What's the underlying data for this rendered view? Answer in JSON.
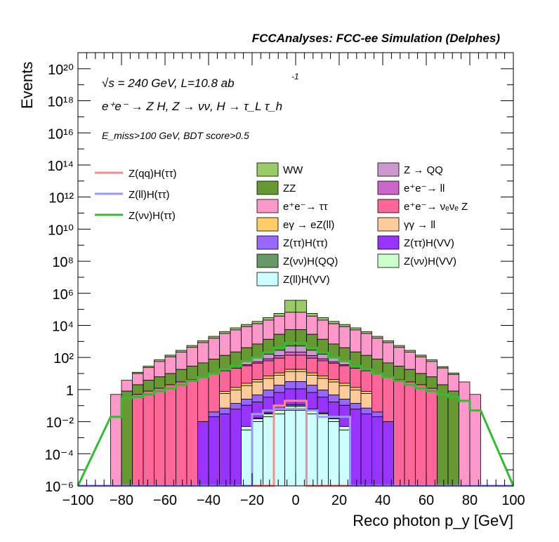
{
  "header": {
    "title": "FCCAnalyses: FCC-ee Simulation (Delphes)"
  },
  "annotations": {
    "energy_lumi": "√s = 240 GeV, L=10.8 ab",
    "energy_lumi_exp": "-1",
    "process": "e⁺e⁻ → Z H, Z → νν, H → τ_L τ_h",
    "selection": "E_miss>100 GeV, BDT score>0.5"
  },
  "chart_data": {
    "type": "area",
    "title": "FCCAnalyses: FCC-ee Simulation (Delphes)",
    "xlabel": "Reco photon p_y [GeV]",
    "ylabel": "Events",
    "xlim": [
      -100,
      100
    ],
    "ylim": [
      1e-06,
      1e+21
    ],
    "yscale": "log",
    "grid": false,
    "x_ticks": [
      "−100",
      "−80",
      "−60",
      "−40",
      "−20",
      "0",
      "20",
      "40",
      "60",
      "80",
      "100"
    ],
    "y_ticks": [
      "10⁻⁶",
      "10⁻⁴",
      "10⁻²",
      "1",
      "10²",
      "10⁴",
      "10⁶",
      "10⁸",
      "10¹⁰",
      "10¹²",
      "10¹⁴",
      "10¹⁶",
      "10¹⁸",
      "10²⁰"
    ],
    "bin_width": 5,
    "bin_centers": [
      -82.5,
      -77.5,
      -72.5,
      -67.5,
      -62.5,
      -57.5,
      -52.5,
      -47.5,
      -42.5,
      -37.5,
      -32.5,
      -27.5,
      -22.5,
      -17.5,
      -12.5,
      -7.5,
      -2.5,
      2.5,
      7.5,
      12.5,
      17.5,
      22.5,
      27.5,
      32.5,
      37.5,
      42.5,
      47.5,
      52.5,
      57.5,
      62.5,
      67.5,
      72.5,
      77.5,
      82.5
    ],
    "stacked_series": [
      {
        "name": "Z(ll)H(VV)",
        "color": "#ccffff",
        "values": [
          0,
          0,
          0,
          0,
          0,
          0,
          0,
          0,
          0,
          0,
          0,
          0,
          0.003,
          0.01,
          0.02,
          0.03,
          0.05,
          0.05,
          0.03,
          0.02,
          0.01,
          0.003,
          0,
          0,
          0,
          0,
          0,
          0,
          0,
          0,
          0,
          0,
          0,
          0
        ]
      },
      {
        "name": "Z(νν)H(VV)",
        "color": "#ccffcc",
        "values": [
          0,
          0,
          0,
          0,
          0,
          0,
          0,
          0,
          0,
          0,
          0,
          0,
          0.002,
          0.005,
          0.01,
          0.02,
          0.04,
          0.04,
          0.02,
          0.01,
          0.005,
          0.002,
          0,
          0,
          0,
          0,
          0,
          0,
          0,
          0,
          0,
          0,
          0,
          0
        ]
      },
      {
        "name": "Z(νν)H(QQ)",
        "color": "#669966",
        "values": [
          0,
          0,
          0,
          0,
          0,
          0,
          0,
          0,
          0,
          0,
          0,
          0,
          0,
          0.002,
          0.005,
          0.01,
          0.02,
          0.02,
          0.01,
          0.005,
          0.002,
          0,
          0,
          0,
          0,
          0,
          0,
          0,
          0,
          0,
          0,
          0,
          0,
          0
        ]
      },
      {
        "name": "Z(ττ)H(VV)",
        "color": "#9933ff",
        "values": [
          0,
          0,
          0,
          0,
          0,
          0,
          0,
          0,
          0.01,
          0.02,
          0.03,
          0.06,
          0.1,
          0.15,
          0.3,
          0.6,
          1.0,
          1.0,
          0.6,
          0.3,
          0.15,
          0.1,
          0.06,
          0.03,
          0.02,
          0.01,
          0,
          0,
          0,
          0,
          0,
          0,
          0,
          0
        ]
      },
      {
        "name": "Z(ττ)H(ττ)",
        "color": "#9966ff",
        "values": [
          0,
          0,
          0,
          0,
          0,
          0,
          0,
          0,
          0,
          0.02,
          0.04,
          0.08,
          0.15,
          0.3,
          0.6,
          1.2,
          2.0,
          2.0,
          1.2,
          0.6,
          0.3,
          0.15,
          0.08,
          0.04,
          0.02,
          0,
          0,
          0,
          0,
          0,
          0,
          0,
          0,
          0
        ]
      },
      {
        "name": "γγ → ll",
        "color": "#ffcc99",
        "values": [
          0,
          0,
          0,
          0,
          0,
          0,
          0,
          0,
          0,
          0,
          0.5,
          0.8,
          1.5,
          2.5,
          4,
          6,
          10,
          10,
          6,
          4,
          2.5,
          1.5,
          0.8,
          0.5,
          0,
          0,
          0,
          0,
          0,
          0,
          0,
          0,
          0,
          0
        ]
      },
      {
        "name": "eγ → eZ(ll)",
        "color": "#ffcc66",
        "values": [
          0,
          0,
          0,
          0,
          0,
          0,
          0,
          0,
          0,
          0,
          0.2,
          0.4,
          0.7,
          1.2,
          2,
          3,
          5,
          5,
          3,
          2,
          1.2,
          0.7,
          0.4,
          0.2,
          0,
          0,
          0,
          0,
          0,
          0,
          0,
          0,
          0,
          0
        ]
      },
      {
        "name": "e⁺e⁻→ νₑνₑ Z",
        "color": "#ff6699",
        "values": [
          0,
          0,
          0.5,
          0.8,
          1.2,
          2,
          3,
          4,
          6,
          10,
          14,
          20,
          28,
          40,
          55,
          80,
          120,
          120,
          80,
          55,
          40,
          28,
          20,
          14,
          10,
          6,
          4,
          3,
          2,
          1.2,
          0,
          0,
          0,
          0
        ]
      },
      {
        "name": "e⁺e⁻→ ll",
        "color": "#cc66cc",
        "values": [
          0,
          0,
          0,
          0,
          0,
          0,
          0,
          0,
          0,
          0,
          0,
          0,
          5,
          10,
          20,
          40,
          80,
          80,
          40,
          20,
          10,
          5,
          0,
          0,
          0,
          0,
          0,
          0,
          0,
          0,
          0,
          0,
          0,
          0
        ]
      },
      {
        "name": "Z → QQ",
        "color": "#cc99cc",
        "values": [
          0,
          0,
          0,
          0,
          0,
          0,
          0,
          0,
          0,
          0,
          0,
          0,
          20,
          40,
          80,
          150,
          300,
          300,
          150,
          80,
          40,
          20,
          0,
          0,
          0,
          0,
          0,
          0,
          0,
          0,
          0,
          0,
          0,
          0
        ]
      },
      {
        "name": "ZZ",
        "color": "#669933",
        "values": [
          0,
          0.8,
          1.5,
          3,
          5,
          8,
          15,
          25,
          40,
          70,
          120,
          200,
          350,
          600,
          1200,
          2500,
          5000,
          5000,
          2500,
          1200,
          600,
          350,
          200,
          120,
          70,
          40,
          25,
          15,
          8,
          5,
          2,
          0.8,
          0,
          0
        ]
      },
      {
        "name": "e⁺e⁻→ ττ",
        "color": "#ff99cc",
        "values": [
          0.5,
          3,
          8,
          20,
          50,
          100,
          200,
          400,
          800,
          1500,
          3000,
          5000,
          8000,
          12000,
          20000,
          35000,
          60000,
          60000,
          35000,
          20000,
          12000,
          8000,
          5000,
          3000,
          1500,
          800,
          400,
          200,
          100,
          50,
          20,
          8,
          3,
          0.5
        ]
      },
      {
        "name": "WW",
        "color": "#99cc66",
        "values": [
          0,
          0,
          2,
          5,
          15,
          30,
          60,
          130,
          260,
          500,
          1000,
          1800,
          3000,
          5000,
          9000,
          18000,
          300000,
          300000,
          18000,
          9000,
          5000,
          3000,
          1800,
          1000,
          500,
          260,
          130,
          60,
          30,
          15,
          5,
          2,
          0,
          0
        ]
      }
    ],
    "signal_series": [
      {
        "name": "Z(qq)H(ττ)",
        "color": "#ff8888",
        "values": [
          0,
          0,
          0,
          0,
          0,
          0,
          0,
          0,
          0,
          0,
          0,
          0,
          0,
          0,
          5e-07,
          0.1,
          0.2,
          0.2,
          5e-07,
          0,
          0,
          0,
          0,
          0,
          0,
          0,
          0,
          0,
          0,
          0,
          0,
          0,
          0,
          0
        ]
      },
      {
        "name": "Z(ll)H(ττ)",
        "color": "#9999ff",
        "values": [
          0,
          0,
          0,
          0,
          0,
          0,
          0,
          0,
          0,
          0,
          0,
          0,
          5e-07,
          0.03,
          0.05,
          0.06,
          0.06,
          0.06,
          0.05,
          0.02,
          0.02,
          0.02,
          5e-07,
          0,
          0,
          0,
          0,
          0,
          0,
          0,
          0,
          0,
          0,
          0
        ]
      },
      {
        "name": "Z(νν)H(ττ)",
        "color": "#33bb33",
        "values": [
          0.02,
          0.3,
          0.35,
          0.5,
          0.8,
          1.2,
          2,
          3.5,
          6,
          10,
          18,
          30,
          60,
          100,
          200,
          400,
          800,
          800,
          400,
          200,
          100,
          60,
          30,
          18,
          10,
          6,
          3.5,
          2,
          1.2,
          0.8,
          0.5,
          0.35,
          0.2,
          0.05
        ]
      }
    ],
    "legend": {
      "placement": "top",
      "left_column": [
        "Z(qq)H(ττ)",
        "Z(ll)H(ττ)",
        "Z(νν)H(ττ)"
      ],
      "middle_column": [
        "WW",
        "ZZ",
        "e⁺e⁻→ ττ",
        "eγ → eZ(ll)",
        "Z(ττ)H(ττ)",
        "Z(νν)H(QQ)",
        "Z(ll)H(VV)"
      ],
      "right_column": [
        "Z → QQ",
        "e⁺e⁻→ ll",
        "e⁺e⁻→ νₑνₑ Z",
        "γγ → ll",
        "Z(ττ)H(VV)",
        "Z(νν)H(VV)"
      ]
    }
  }
}
